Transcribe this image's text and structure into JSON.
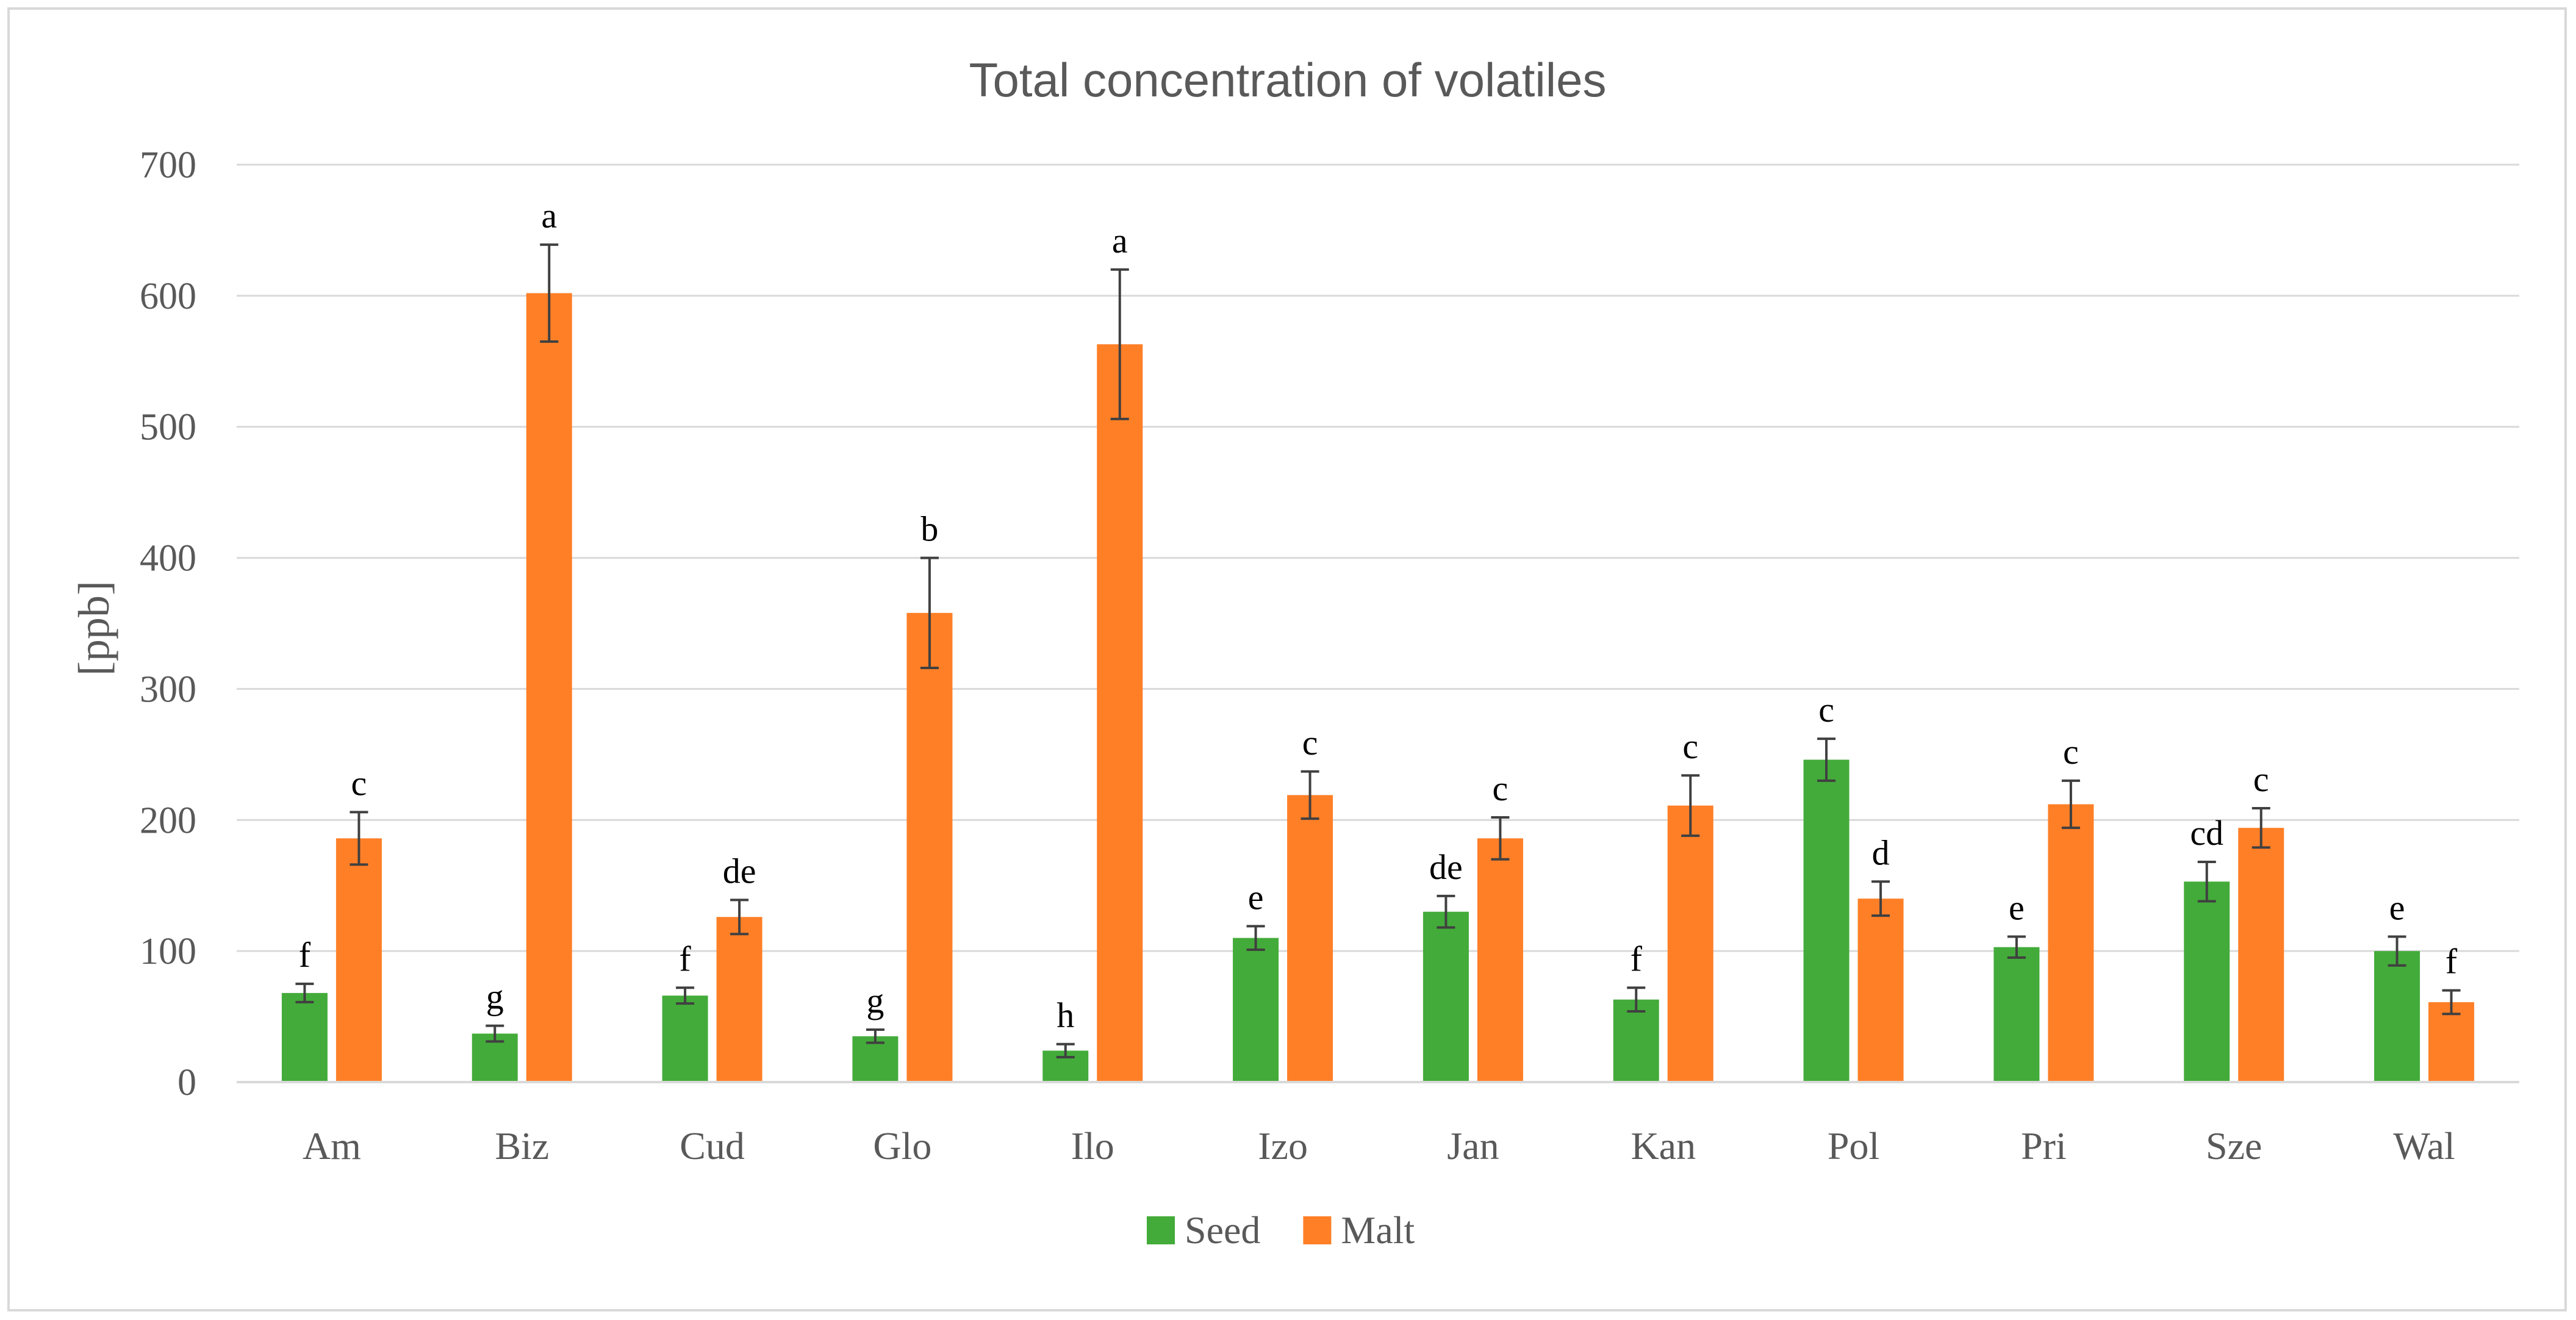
{
  "chart_data": {
    "type": "bar",
    "title": "Total concentration of volatiles",
    "xlabel": "",
    "ylabel": "[ppb]",
    "ylim": [
      0,
      700
    ],
    "yticks": [
      0,
      100,
      200,
      300,
      400,
      500,
      600,
      700
    ],
    "grid": true,
    "legend_position": "bottom",
    "categories": [
      "Am",
      "Biz",
      "Cud",
      "Glo",
      "Ilo",
      "Izo",
      "Jan",
      "Kan",
      "Pol",
      "Pri",
      "Sze",
      "Wal"
    ],
    "series": [
      {
        "name": "Seed",
        "color": "#43AB3A",
        "values": [
          68,
          37,
          66,
          35,
          24,
          110,
          130,
          63,
          246,
          103,
          153,
          100
        ],
        "errors": [
          7,
          6,
          6,
          5,
          5,
          9,
          12,
          9,
          16,
          8,
          15,
          11
        ],
        "labels": [
          "f",
          "g",
          "f",
          "g",
          "h",
          "e",
          "de",
          "f",
          "c",
          "e",
          "cd",
          "e"
        ]
      },
      {
        "name": "Malt",
        "color": "#FF7F27",
        "values": [
          186,
          602,
          126,
          358,
          563,
          219,
          186,
          211,
          140,
          212,
          194,
          61
        ],
        "errors": [
          20,
          37,
          13,
          42,
          57,
          18,
          16,
          23,
          13,
          18,
          15,
          9
        ],
        "labels": [
          "c",
          "a",
          "de",
          "b",
          "a",
          "c",
          "c",
          "c",
          "d",
          "c",
          "c",
          "f"
        ]
      }
    ]
  }
}
